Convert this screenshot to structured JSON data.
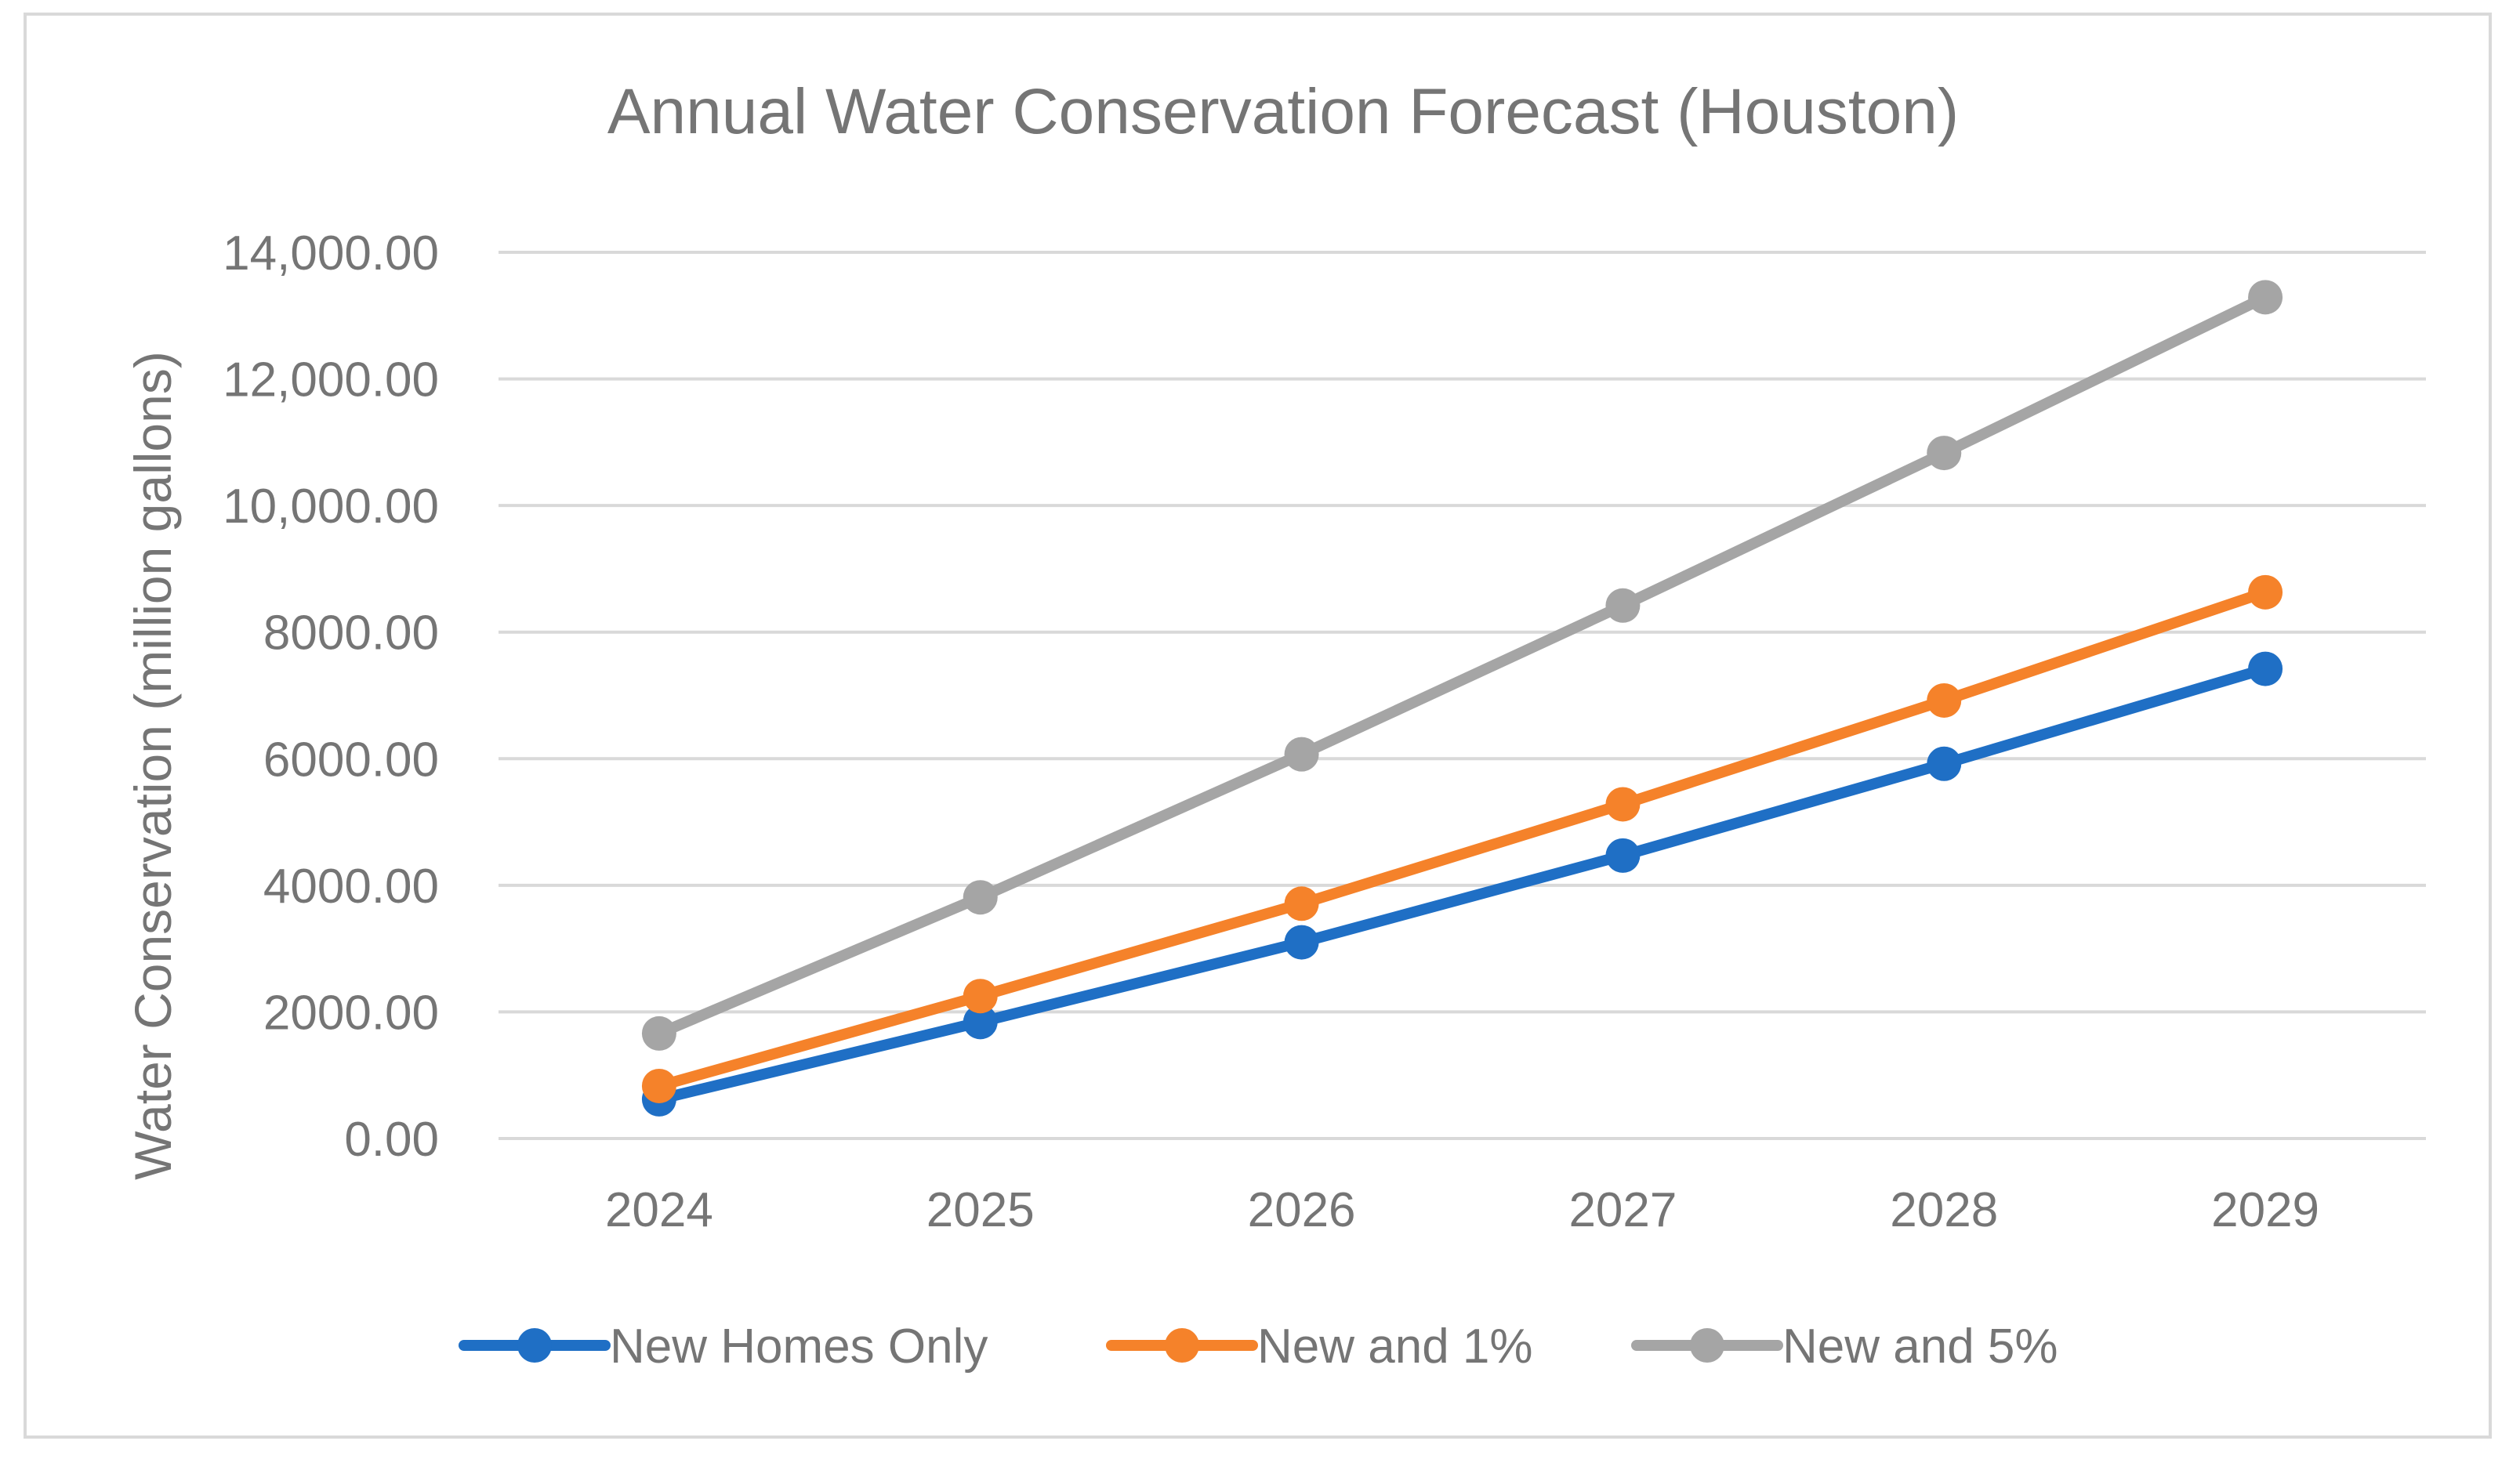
{
  "chart_data": {
    "type": "line",
    "title": "Annual Water Conservation Forecast (Houston)",
    "xlabel": "",
    "ylabel": "Water Conservation (million gallons)",
    "categories": [
      "2024",
      "2025",
      "2026",
      "2027",
      "2028",
      "2029"
    ],
    "ylim": [
      0,
      14000
    ],
    "yticks": [
      0,
      2000,
      4000,
      6000,
      8000,
      10000,
      12000,
      14000
    ],
    "ytick_labels": [
      "0.00",
      "2000.00",
      "4000.00",
      "6000.00",
      "8000.00",
      "10,000.00",
      "12,000.00",
      "14,000.00"
    ],
    "grid": true,
    "legend_position": "bottom",
    "series": [
      {
        "name": "New Homes Only",
        "color": "#1f6fc5",
        "values": [
          620,
          1840,
          3100,
          4470,
          5920,
          7420
        ]
      },
      {
        "name": "New and 1%",
        "color": "#f5822a",
        "values": [
          830,
          2250,
          3710,
          5280,
          6920,
          8630
        ]
      },
      {
        "name": "New and 5%",
        "color": "#a5a5a5",
        "values": [
          1660,
          3810,
          6070,
          8420,
          10830,
          13290
        ]
      }
    ]
  }
}
